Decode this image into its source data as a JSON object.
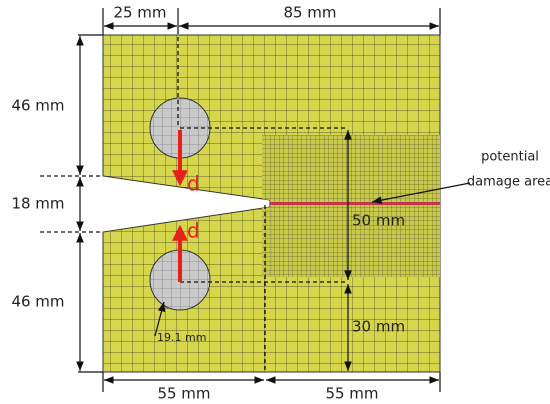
{
  "dimensions": {
    "top_left": "25 mm",
    "top_right": "85 mm",
    "left_upper": "46 mm",
    "left_middle": "18 mm",
    "left_lower": "46 mm",
    "bottom_left": "55 mm",
    "bottom_right": "55 mm",
    "inner_vertical": "50 mm",
    "inner_lower": "30 mm",
    "hole_diameter": "19.1 mm"
  },
  "loads": {
    "upper": "d",
    "lower": "d"
  },
  "annotation": {
    "line1": "potential",
    "line2": "damage area"
  }
}
